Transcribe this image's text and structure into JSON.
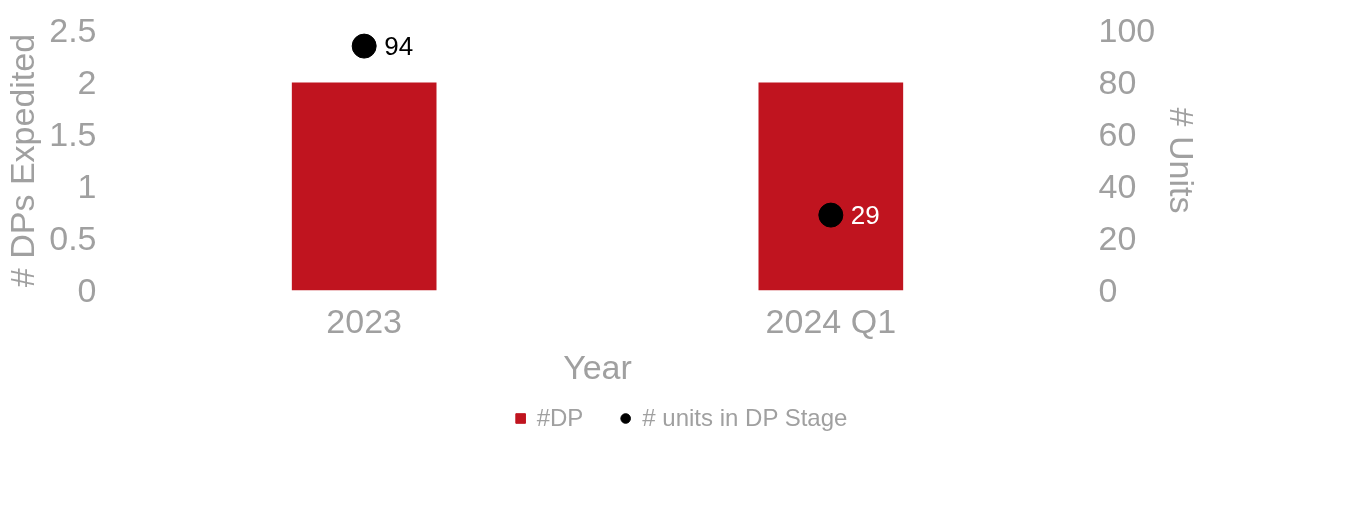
{
  "chart_data": {
    "type": "bar",
    "xlabel": "Year",
    "ylabel": "# DPs Expedited",
    "y2label": "# Units",
    "categories": [
      "2023",
      "2024 Q1"
    ],
    "series": [
      {
        "name": "#DP",
        "color": "#c0141f",
        "values": [
          2,
          2
        ]
      },
      {
        "name": "# units in DP Stage",
        "type": "scatter",
        "axis": "y2",
        "color": "#000000",
        "marker": "circle",
        "values": [
          94,
          29
        ],
        "value_labels": [
          "94",
          "29"
        ]
      }
    ],
    "ylim": [
      0,
      2.5
    ],
    "yticks": [
      0,
      {
        "value": 0.5,
        "label": "0.5"
      },
      1,
      {
        "value": 1.5,
        "label": "1.5"
      },
      2,
      {
        "value": 2.5,
        "label": "2.5"
      }
    ],
    "y2lim": [
      0,
      100
    ],
    "y2ticks": [
      0,
      20,
      40,
      60,
      80,
      100
    ],
    "grid": false,
    "legend": "bottom"
  }
}
